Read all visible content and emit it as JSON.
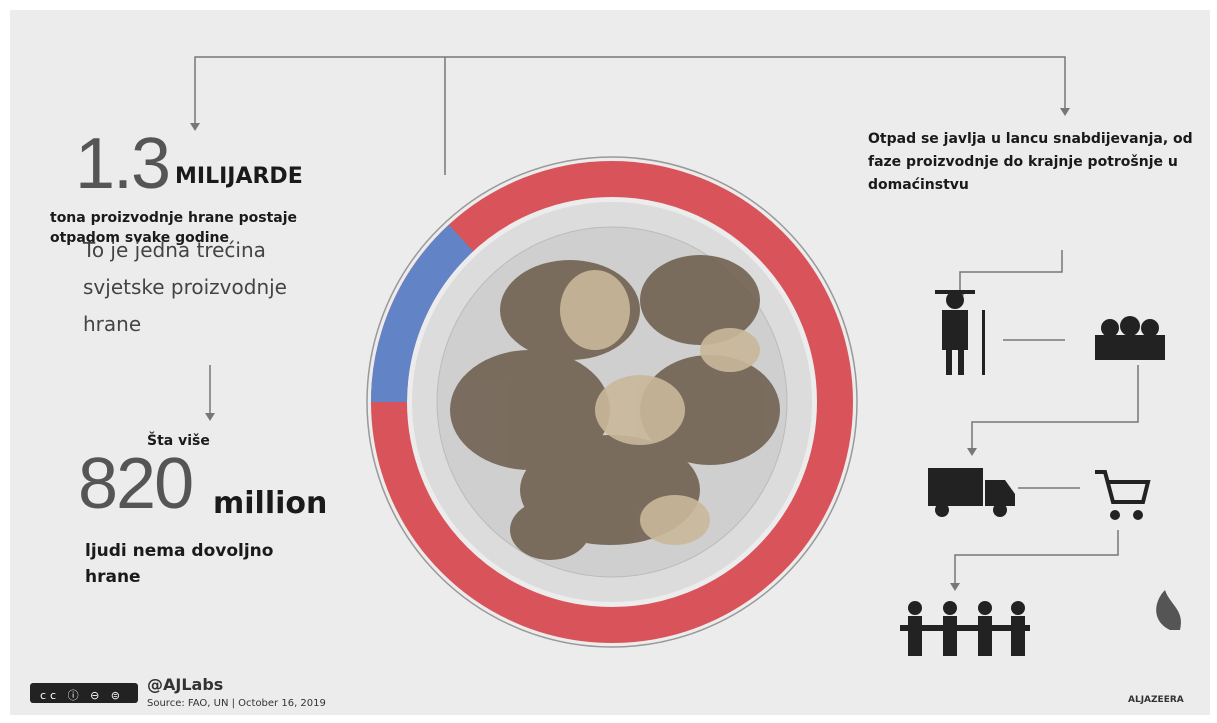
{
  "stat1": {
    "number": "1.3",
    "unit": "MILIJARDE",
    "text": "tona proizvodnje hrane postaje otpadom svake godine",
    "note": "To je jedna trećina svjetske proizvodnje hrane"
  },
  "stat2": {
    "intro": "Šta više",
    "number": "820",
    "unit": "million",
    "text": "ljudi nema dovoljno hrane"
  },
  "chain": {
    "text": "Otpad se javlja u lancu snabdijevanja, od faze proizvodnje do krajnje potrošnje u domaćinstvu"
  },
  "footer": {
    "handle": "@AJLabs",
    "source": "Source: FAO, UN | October 16, 2019",
    "brand": "ALJAZEERA"
  }
}
